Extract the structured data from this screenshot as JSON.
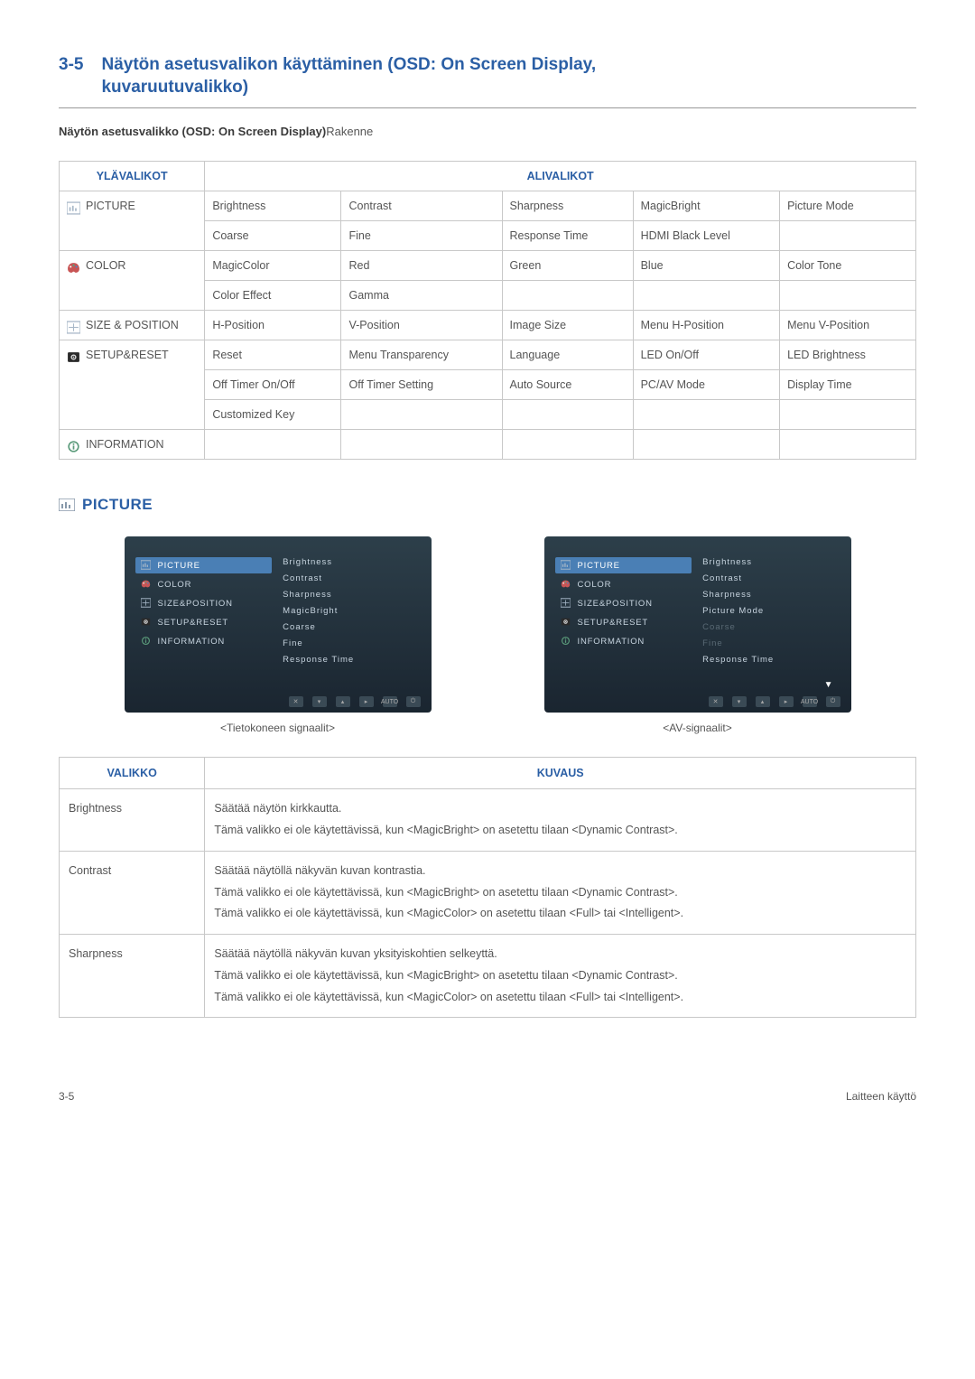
{
  "header": {
    "section_num": "3-5",
    "title_line1": "Näytön asetusvalikon käyttäminen (OSD: On Screen Display,",
    "title_line2": "kuvaruutuvalikko)",
    "subtitle_bold": "Näytön asetusvalikko (OSD: On Screen Display)",
    "subtitle_norm": "Rakenne"
  },
  "osd_table": {
    "header_left": "YLÄVALIKOT",
    "header_right": "ALIVALIKOT",
    "rows": [
      {
        "menu": "PICTURE",
        "icon": "picture-icon",
        "cells": [
          [
            "Brightness",
            "Contrast",
            "Sharpness",
            "MagicBright",
            "Picture Mode"
          ],
          [
            "Coarse",
            "Fine",
            "Response Time",
            "HDMI Black Level",
            ""
          ]
        ]
      },
      {
        "menu": "COLOR",
        "icon": "color-icon",
        "cells": [
          [
            "MagicColor",
            "Red",
            "Green",
            "Blue",
            "Color Tone"
          ],
          [
            "Color Effect",
            "Gamma",
            "",
            "",
            ""
          ]
        ]
      },
      {
        "menu": "SIZE & POSITION",
        "icon": "size-icon",
        "cells": [
          [
            "H-Position",
            "V-Position",
            "Image Size",
            "Menu H-Position",
            "Menu V-Position"
          ]
        ]
      },
      {
        "menu": "SETUP&RESET",
        "icon": "setup-icon",
        "cells": [
          [
            "Reset",
            "Menu Transparency",
            "Language",
            "LED On/Off",
            "LED Brightness"
          ],
          [
            "Off Timer On/Off",
            "Off Timer Setting",
            "Auto Source",
            "PC/AV Mode",
            "Display Time"
          ],
          [
            "Customized Key",
            "",
            "",
            "",
            ""
          ]
        ]
      },
      {
        "menu": "INFORMATION",
        "icon": "info-icon",
        "cells": [
          [
            "",
            "",
            "",
            "",
            ""
          ]
        ]
      }
    ]
  },
  "picture_section": {
    "icon": "picture-icon",
    "label": "PICTURE"
  },
  "screenshots": {
    "left": {
      "caption": "<Tietokoneen signaalit>",
      "left_items": [
        {
          "label": "PICTURE",
          "icon": "picture-icon",
          "active": true
        },
        {
          "label": "COLOR",
          "icon": "color-icon",
          "active": false
        },
        {
          "label": "SIZE&POSITION",
          "icon": "size-icon",
          "active": false
        },
        {
          "label": "SETUP&RESET",
          "icon": "setup-icon",
          "active": false
        },
        {
          "label": "INFORMATION",
          "icon": "info-icon",
          "active": false
        }
      ],
      "right_items": [
        {
          "label": "Brightness",
          "dim": false
        },
        {
          "label": "Contrast",
          "dim": false
        },
        {
          "label": "Sharpness",
          "dim": false
        },
        {
          "label": "MagicBright",
          "dim": false
        },
        {
          "label": "Coarse",
          "dim": false
        },
        {
          "label": "Fine",
          "dim": false
        },
        {
          "label": "Response Time",
          "dim": false
        }
      ]
    },
    "right": {
      "caption": "<AV-signaalit>",
      "left_items": [
        {
          "label": "PICTURE",
          "icon": "picture-icon",
          "active": true
        },
        {
          "label": "COLOR",
          "icon": "color-icon",
          "active": false
        },
        {
          "label": "SIZE&POSITION",
          "icon": "size-icon",
          "active": false
        },
        {
          "label": "SETUP&RESET",
          "icon": "setup-icon",
          "active": false
        },
        {
          "label": "INFORMATION",
          "icon": "info-icon",
          "active": false
        }
      ],
      "right_items": [
        {
          "label": "Brightness",
          "dim": false
        },
        {
          "label": "Contrast",
          "dim": false
        },
        {
          "label": "Sharpness",
          "dim": false
        },
        {
          "label": "Picture Mode",
          "dim": false
        },
        {
          "label": "Coarse",
          "dim": true
        },
        {
          "label": "Fine",
          "dim": true
        },
        {
          "label": "Response Time",
          "dim": false
        }
      ],
      "has_arrow": true
    }
  },
  "desc_table": {
    "header_left": "VALIKKO",
    "header_right": "KUVAUS",
    "rows": [
      {
        "menu": "Brightness",
        "desc": [
          "Säätää näytön kirkkautta.",
          "Tämä valikko ei ole käytettävissä, kun <MagicBright> on asetettu tilaan <Dynamic Contrast>."
        ]
      },
      {
        "menu": "Contrast",
        "desc": [
          "Säätää näytöllä näkyvän kuvan kontrastia.",
          "Tämä valikko ei ole käytettävissä, kun <MagicBright> on asetettu tilaan <Dynamic Contrast>.",
          "Tämä valikko ei ole käytettävissä, kun <MagicColor> on asetettu tilaan <Full> tai <Intelligent>."
        ]
      },
      {
        "menu": "Sharpness",
        "desc": [
          "Säätää näytöllä näkyvän kuvan yksityiskohtien selkeyttä.",
          "Tämä valikko ei ole käytettävissä, kun <MagicBright> on asetettu tilaan <Dynamic Contrast>.",
          "Tämä valikko ei ole käytettävissä, kun <MagicColor> on asetettu tilaan <Full> tai <Intelligent>."
        ]
      }
    ]
  },
  "footer": {
    "left": "3-5",
    "right": "Laitteen käyttö"
  },
  "colors": {
    "accent": "#2b5fa5",
    "border": "#c8c8c8",
    "text": "#555",
    "panel_bg_top": "#2d3f4a",
    "panel_bg_bottom": "#1a2530",
    "panel_active": "#4a7fb5"
  },
  "icons": {
    "picture-icon": {
      "type": "rect-bars",
      "color": "#8899aa"
    },
    "color-icon": {
      "type": "palette",
      "color": "#c44"
    },
    "size-icon": {
      "type": "crosshair",
      "color": "#888"
    },
    "setup-icon": {
      "type": "gear",
      "color": "#333"
    },
    "info-icon": {
      "type": "circle-i",
      "color": "#4a7"
    }
  }
}
